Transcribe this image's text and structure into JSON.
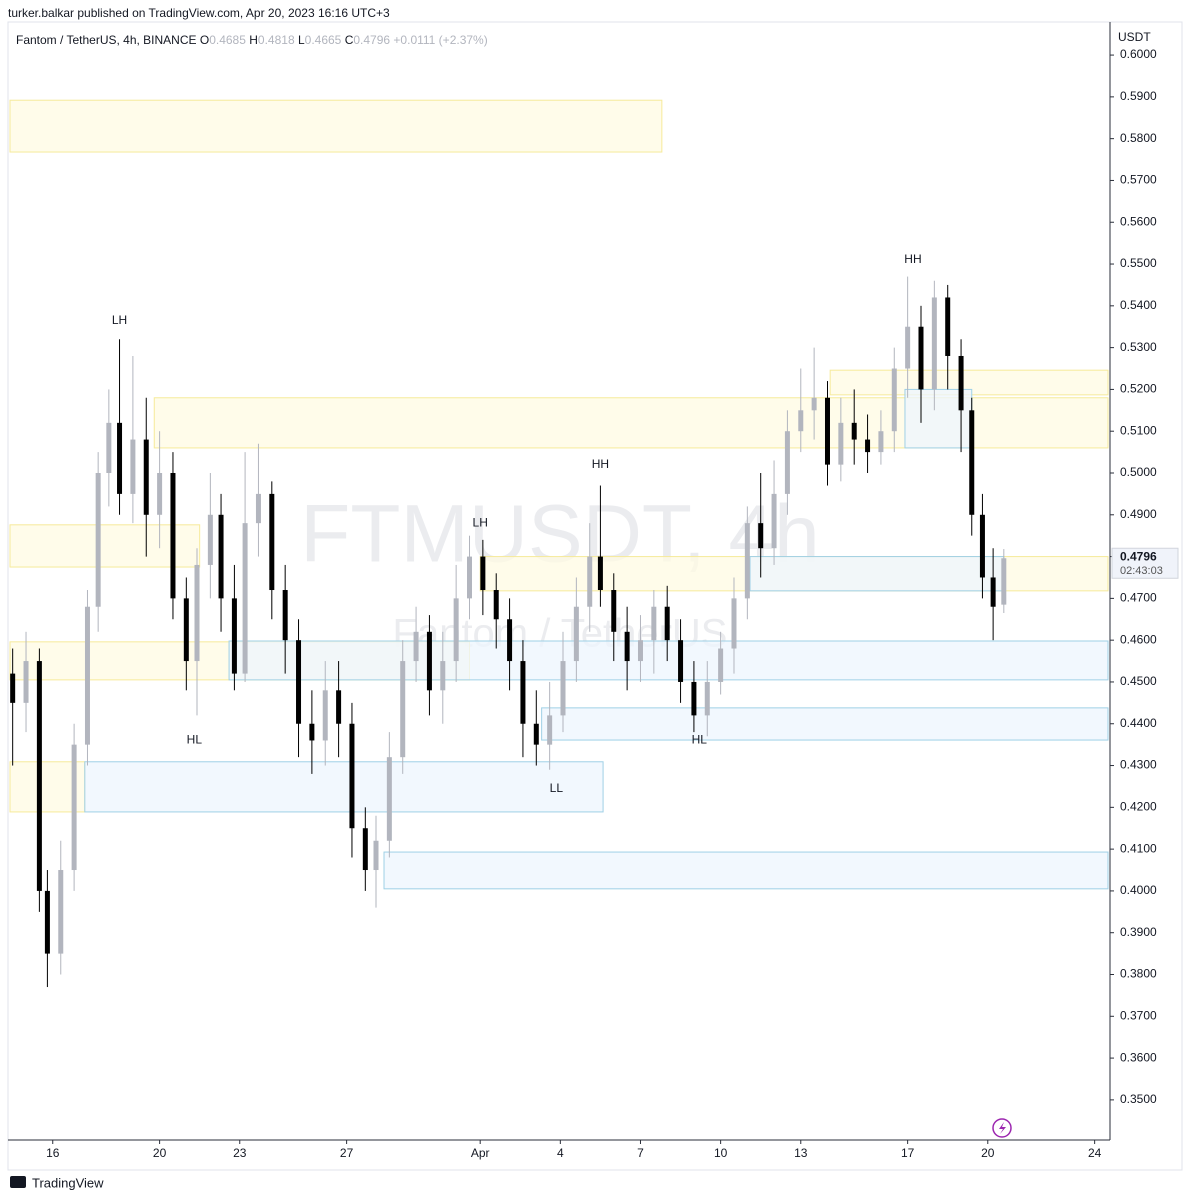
{
  "header": {
    "text": "turker.balkar published on TradingView.com, Apr 20, 2023 16:16 UTC+3"
  },
  "chart_data": {
    "type": "candlestick",
    "title": "Fantom / TetherUS, 4h, BINANCE",
    "ohlc_labels": [
      "O",
      "H",
      "L",
      "C"
    ],
    "ohlc": [
      0.4685,
      0.4818,
      0.4665,
      0.4796
    ],
    "change": "+0.0111 (+2.37%)",
    "watermark": "FTMUSDT, 4h",
    "watermark_sub": "Fantom / TetherUS",
    "y_axis_label": "USDT",
    "countdown": "02:43:03",
    "up_color": "#b2b5be",
    "down_color": "#000000",
    "xlim": [
      14.4,
      55.5
    ],
    "xticks": [
      {
        "value": 16,
        "label": "16"
      },
      {
        "value": 20,
        "label": "20"
      },
      {
        "value": 23,
        "label": "23"
      },
      {
        "value": 27,
        "label": "27"
      },
      {
        "value": 32,
        "label": "Apr"
      },
      {
        "value": 35,
        "label": "4"
      },
      {
        "value": 38,
        "label": "7"
      },
      {
        "value": 41,
        "label": "10"
      },
      {
        "value": 44,
        "label": "13"
      },
      {
        "value": 48,
        "label": "17"
      },
      {
        "value": 51,
        "label": "20"
      },
      {
        "value": 55,
        "label": "24"
      }
    ],
    "ylim": [
      0.3404,
      0.606
    ],
    "yticks": [
      {
        "value": 0.35,
        "label": "0.3500"
      },
      {
        "value": 0.36,
        "label": "0.3600"
      },
      {
        "value": 0.37,
        "label": "0.3700"
      },
      {
        "value": 0.38,
        "label": "0.3800"
      },
      {
        "value": 0.39,
        "label": "0.3900"
      },
      {
        "value": 0.4,
        "label": "0.4000"
      },
      {
        "value": 0.41,
        "label": "0.4100"
      },
      {
        "value": 0.42,
        "label": "0.4200"
      },
      {
        "value": 0.43,
        "label": "0.4300"
      },
      {
        "value": 0.44,
        "label": "0.4400"
      },
      {
        "value": 0.45,
        "label": "0.4500"
      },
      {
        "value": 0.46,
        "label": "0.4600"
      },
      {
        "value": 0.47,
        "label": "0.4700"
      },
      {
        "value": 0.48,
        "label": "0.4800"
      },
      {
        "value": 0.49,
        "label": "0.4900"
      },
      {
        "value": 0.5,
        "label": "0.5000"
      },
      {
        "value": 0.51,
        "label": "0.5100"
      },
      {
        "value": 0.52,
        "label": "0.5200"
      },
      {
        "value": 0.53,
        "label": "0.5300"
      },
      {
        "value": 0.54,
        "label": "0.5400"
      },
      {
        "value": 0.55,
        "label": "0.5500"
      },
      {
        "value": 0.56,
        "label": "0.5600"
      },
      {
        "value": 0.57,
        "label": "0.5700"
      },
      {
        "value": 0.58,
        "label": "0.5800"
      },
      {
        "value": 0.59,
        "label": "0.5900"
      },
      {
        "value": 0.6,
        "label": "0.6000"
      }
    ],
    "zones": [
      {
        "x": [
          14.4,
          38.8
        ],
        "y": [
          0.5768,
          0.5892
        ],
        "fill": "#fffbe3",
        "stroke": "#f6ea9a"
      },
      {
        "x": [
          19.8,
          55.5
        ],
        "y": [
          0.506,
          0.518
        ],
        "fill": "#fffbe3",
        "stroke": "#f6ea9a"
      },
      {
        "x": [
          45.1,
          55.5
        ],
        "y": [
          0.5187,
          0.5246
        ],
        "fill": "#fffbe3",
        "stroke": "#f6ea9a"
      },
      {
        "x": [
          14.4,
          21.5
        ],
        "y": [
          0.4775,
          0.4876
        ],
        "fill": "#fffbe3",
        "stroke": "#f6ea9a"
      },
      {
        "x": [
          32.0,
          55.5
        ],
        "y": [
          0.4718,
          0.48
        ],
        "fill": "#fffbe3",
        "stroke": "#f6ea9a"
      },
      {
        "x": [
          42.1,
          51.6
        ],
        "y": [
          0.4718,
          0.48
        ],
        "fill": "#eef6fd",
        "stroke": "#9fd0e6"
      },
      {
        "x": [
          14.4,
          31.6
        ],
        "y": [
          0.4505,
          0.4596
        ],
        "fill": "#fffbe3",
        "stroke": "#f6ea9a"
      },
      {
        "x": [
          22.6,
          55.5
        ],
        "y": [
          0.4505,
          0.4598
        ],
        "fill": "#eef6fd",
        "stroke": "#9fd0e6"
      },
      {
        "x": [
          34.3,
          55.5
        ],
        "y": [
          0.4361,
          0.4438
        ],
        "fill": "#eef6fd",
        "stroke": "#9fd0e6"
      },
      {
        "x": [
          14.4,
          17.2
        ],
        "y": [
          0.4189,
          0.4309
        ],
        "fill": "#fffbe3",
        "stroke": "#f6ea9a"
      },
      {
        "x": [
          17.2,
          36.6
        ],
        "y": [
          0.4189,
          0.4309
        ],
        "fill": "#eef6fd",
        "stroke": "#9fd0e6"
      },
      {
        "x": [
          28.4,
          55.5
        ],
        "y": [
          0.4005,
          0.4093
        ],
        "fill": "#eef6fd",
        "stroke": "#9fd0e6"
      },
      {
        "x": [
          47.9,
          50.4
        ],
        "y": [
          0.506,
          0.52
        ],
        "fill": "#eef6fd",
        "stroke": "#9fd0e6"
      }
    ],
    "annotations": [
      {
        "text": "LH",
        "x": 18.5,
        "y": 0.5364
      },
      {
        "text": "HL",
        "x": 21.3,
        "y": 0.436
      },
      {
        "text": "LH",
        "x": 32.0,
        "y": 0.488
      },
      {
        "text": "HH",
        "x": 36.5,
        "y": 0.502
      },
      {
        "text": "LL",
        "x": 34.85,
        "y": 0.4244
      },
      {
        "text": "HL",
        "x": 40.2,
        "y": 0.436
      },
      {
        "text": "HH",
        "x": 48.2,
        "y": 0.551
      }
    ],
    "candles": {
      "x": [
        14.5,
        15.0,
        15.5,
        15.8,
        16.3,
        16.8,
        17.3,
        17.7,
        18.1,
        18.5,
        19.0,
        19.5,
        20.0,
        20.5,
        21.0,
        21.4,
        21.9,
        22.3,
        22.8,
        23.2,
        23.7,
        24.2,
        24.7,
        25.2,
        25.7,
        26.2,
        26.7,
        27.2,
        27.7,
        28.1,
        28.6,
        29.1,
        29.6,
        30.1,
        30.6,
        31.1,
        31.6,
        32.1,
        32.6,
        33.1,
        33.6,
        34.1,
        34.6,
        35.1,
        35.6,
        36.1,
        36.5,
        37.0,
        37.5,
        38.0,
        38.5,
        39.0,
        39.5,
        40.0,
        40.5,
        41.0,
        41.5,
        42.0,
        42.5,
        43.0,
        43.5,
        44.0,
        44.5,
        45.0,
        45.5,
        46.0,
        46.5,
        47.0,
        47.5,
        48.0,
        48.5,
        49.0,
        49.5,
        50.0,
        50.4,
        50.8,
        51.2,
        51.6
      ],
      "open": [
        0.452,
        0.445,
        0.455,
        0.4,
        0.385,
        0.405,
        0.435,
        0.468,
        0.5,
        0.512,
        0.495,
        0.508,
        0.49,
        0.5,
        0.47,
        0.455,
        0.478,
        0.49,
        0.47,
        0.452,
        0.488,
        0.495,
        0.472,
        0.46,
        0.44,
        0.436,
        0.448,
        0.44,
        0.415,
        0.405,
        0.412,
        0.432,
        0.455,
        0.462,
        0.448,
        0.455,
        0.47,
        0.48,
        0.472,
        0.465,
        0.455,
        0.44,
        0.435,
        0.442,
        0.455,
        0.468,
        0.48,
        0.472,
        0.462,
        0.455,
        0.46,
        0.468,
        0.46,
        0.45,
        0.442,
        0.45,
        0.458,
        0.47,
        0.488,
        0.482,
        0.495,
        0.51,
        0.515,
        0.518,
        0.502,
        0.512,
        0.508,
        0.505,
        0.51,
        0.525,
        0.535,
        0.52,
        0.542,
        0.528,
        0.515,
        0.49,
        0.475,
        0.4685
      ],
      "high": [
        0.458,
        0.462,
        0.458,
        0.405,
        0.412,
        0.44,
        0.472,
        0.505,
        0.52,
        0.532,
        0.528,
        0.518,
        0.51,
        0.505,
        0.475,
        0.482,
        0.5,
        0.495,
        0.478,
        0.505,
        0.507,
        0.498,
        0.478,
        0.465,
        0.448,
        0.455,
        0.455,
        0.445,
        0.42,
        0.418,
        0.438,
        0.46,
        0.468,
        0.466,
        0.462,
        0.478,
        0.485,
        0.484,
        0.476,
        0.47,
        0.46,
        0.448,
        0.45,
        0.462,
        0.475,
        0.488,
        0.497,
        0.476,
        0.468,
        0.466,
        0.472,
        0.473,
        0.465,
        0.455,
        0.455,
        0.462,
        0.475,
        0.492,
        0.5,
        0.503,
        0.515,
        0.525,
        0.53,
        0.522,
        0.518,
        0.52,
        0.514,
        0.515,
        0.53,
        0.547,
        0.54,
        0.546,
        0.545,
        0.532,
        0.518,
        0.495,
        0.482,
        0.4818
      ],
      "low": [
        0.43,
        0.438,
        0.395,
        0.377,
        0.38,
        0.4,
        0.43,
        0.462,
        0.492,
        0.49,
        0.488,
        0.48,
        0.482,
        0.465,
        0.448,
        0.442,
        0.47,
        0.462,
        0.448,
        0.45,
        0.48,
        0.465,
        0.452,
        0.432,
        0.428,
        0.43,
        0.432,
        0.408,
        0.4,
        0.396,
        0.408,
        0.428,
        0.45,
        0.442,
        0.44,
        0.45,
        0.465,
        0.466,
        0.458,
        0.448,
        0.432,
        0.43,
        0.429,
        0.438,
        0.45,
        0.462,
        0.468,
        0.455,
        0.448,
        0.45,
        0.452,
        0.455,
        0.445,
        0.438,
        0.437,
        0.447,
        0.452,
        0.465,
        0.475,
        0.478,
        0.49,
        0.505,
        0.508,
        0.497,
        0.498,
        0.502,
        0.5,
        0.502,
        0.505,
        0.518,
        0.512,
        0.515,
        0.52,
        0.505,
        0.485,
        0.47,
        0.46,
        0.4665
      ],
      "close": [
        0.445,
        0.455,
        0.4,
        0.385,
        0.405,
        0.435,
        0.468,
        0.5,
        0.512,
        0.495,
        0.508,
        0.49,
        0.5,
        0.47,
        0.455,
        0.478,
        0.49,
        0.47,
        0.452,
        0.488,
        0.495,
        0.472,
        0.46,
        0.44,
        0.436,
        0.448,
        0.44,
        0.415,
        0.405,
        0.412,
        0.432,
        0.455,
        0.462,
        0.448,
        0.455,
        0.47,
        0.48,
        0.472,
        0.465,
        0.455,
        0.44,
        0.435,
        0.442,
        0.455,
        0.468,
        0.48,
        0.472,
        0.462,
        0.455,
        0.46,
        0.468,
        0.46,
        0.45,
        0.442,
        0.45,
        0.458,
        0.47,
        0.488,
        0.482,
        0.495,
        0.51,
        0.515,
        0.518,
        0.502,
        0.512,
        0.508,
        0.505,
        0.51,
        0.525,
        0.535,
        0.52,
        0.542,
        0.528,
        0.515,
        0.49,
        0.475,
        0.468,
        0.4796
      ]
    }
  },
  "footer": {
    "brand": "TradingView"
  }
}
